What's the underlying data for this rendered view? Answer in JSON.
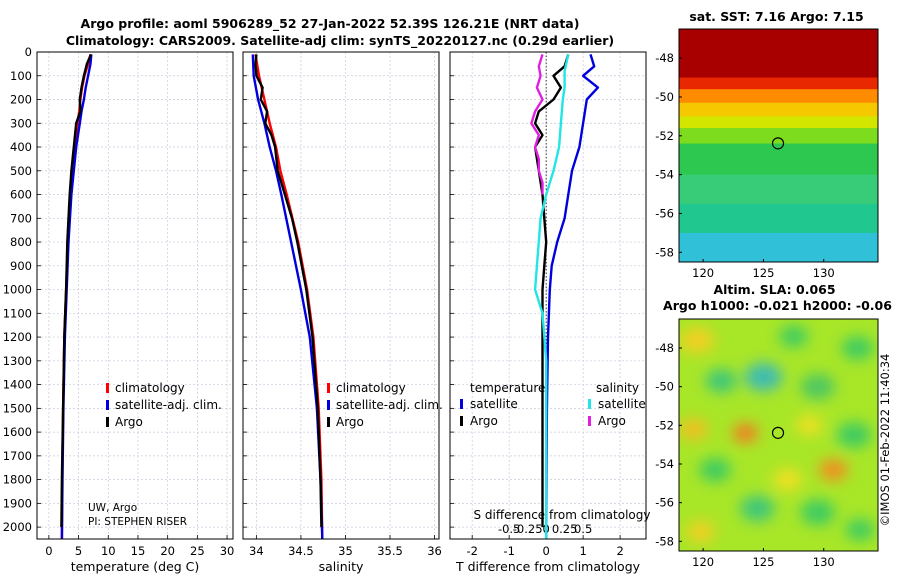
{
  "title": {
    "line1": "Argo profile: aoml 5906289_52 27-Jan-2022 52.39S 126.21E (NRT data)",
    "line2": "Climatology: CARS2009. Satellite-adj clim: synTS_20220127.nc (0.29d earlier)"
  },
  "credit": {
    "line1": "UW, Argo",
    "line2": "PI: STEPHEN RISER"
  },
  "stamp": "©IMOS 01-Feb-2022 11:40:34",
  "colors": {
    "climatology": "#ff0000",
    "satellite": "#0000dd",
    "argo": "#000000",
    "sat_sal": "#22e5e5",
    "argo_sal": "#e020e0",
    "grid": "#c8c8dc"
  },
  "chart_data": [
    {
      "type": "line",
      "id": "temperature",
      "xlabel": "temperature (deg C)",
      "ylabel": "",
      "xlim": [
        -2,
        31
      ],
      "ylim": [
        2050,
        0
      ],
      "xticks": [
        0,
        5,
        10,
        15,
        20,
        25,
        30
      ],
      "xtick_labels": [
        "0",
        "5",
        "10",
        "15",
        "20",
        "25",
        "30"
      ],
      "yticks": [
        0,
        100,
        200,
        300,
        400,
        500,
        600,
        700,
        800,
        900,
        1000,
        1100,
        1200,
        1300,
        1400,
        1500,
        1600,
        1700,
        1800,
        1900,
        2000
      ],
      "ytick_labels": [
        "0",
        "100",
        "200",
        "300",
        "400",
        "500",
        "600",
        "700",
        "800",
        "900",
        "1000",
        "1100",
        "1200",
        "1300",
        "1400",
        "1500",
        "1600",
        "1700",
        "1800",
        "1900",
        "2000"
      ],
      "legend": [
        "climatology",
        "satellite-adj. clim.",
        "Argo"
      ],
      "series": [
        {
          "name": "climatology",
          "color": "#ff0000",
          "depth": [
            10,
            50,
            100,
            150,
            200,
            250,
            300,
            400,
            500,
            600,
            800,
            1000,
            1200,
            1500,
            1800,
            2050
          ],
          "values": [
            7.0,
            6.6,
            6.0,
            5.6,
            5.3,
            5.1,
            4.8,
            4.3,
            3.9,
            3.6,
            3.2,
            2.9,
            2.6,
            2.4,
            2.25,
            2.2
          ]
        },
        {
          "name": "satellite-adj. clim.",
          "color": "#0000dd",
          "depth": [
            10,
            50,
            100,
            150,
            200,
            250,
            300,
            400,
            500,
            600,
            800,
            1000,
            1200,
            1500,
            1800,
            2050
          ],
          "values": [
            7.15,
            7.0,
            6.6,
            6.2,
            5.9,
            5.5,
            5.2,
            4.6,
            4.2,
            3.8,
            3.3,
            3.0,
            2.7,
            2.45,
            2.3,
            2.2
          ]
        },
        {
          "name": "Argo",
          "color": "#000000",
          "depth": [
            10,
            50,
            100,
            150,
            200,
            250,
            300,
            350,
            400,
            500,
            600,
            700,
            800,
            1000,
            1200,
            1500,
            1800,
            2000
          ],
          "values": [
            7.1,
            6.4,
            5.9,
            5.5,
            5.2,
            5.3,
            4.6,
            4.4,
            4.2,
            3.8,
            3.5,
            3.3,
            3.1,
            2.9,
            2.6,
            2.4,
            2.2,
            2.1
          ]
        }
      ]
    },
    {
      "type": "line",
      "id": "salinity",
      "xlabel": "salinity",
      "ylabel": "",
      "xlim": [
        33.85,
        36.05
      ],
      "ylim": [
        2050,
        0
      ],
      "xticks": [
        34,
        34.5,
        35,
        35.5,
        36
      ],
      "xtick_labels": [
        "34",
        "34.5",
        "35",
        "35.5",
        "36"
      ],
      "legend": [
        "climatology",
        "satellite-adj. clim.",
        "Argo"
      ],
      "series": [
        {
          "name": "climatology",
          "color": "#ff0000",
          "depth": [
            10,
            100,
            200,
            300,
            400,
            500,
            600,
            800,
            1000,
            1200,
            1500,
            1800,
            2050
          ],
          "values": [
            33.99,
            34.03,
            34.09,
            34.15,
            34.22,
            34.27,
            34.34,
            34.47,
            34.57,
            34.64,
            34.7,
            34.73,
            34.74
          ]
        },
        {
          "name": "satellite-adj. clim.",
          "color": "#0000dd",
          "depth": [
            10,
            100,
            200,
            300,
            400,
            500,
            600,
            800,
            1000,
            1200,
            1500,
            1800,
            2050
          ],
          "values": [
            33.96,
            33.97,
            34.02,
            34.09,
            34.15,
            34.22,
            34.28,
            34.39,
            34.5,
            34.6,
            34.68,
            34.72,
            34.74
          ]
        },
        {
          "name": "Argo",
          "color": "#000000",
          "depth": [
            10,
            50,
            100,
            150,
            200,
            250,
            300,
            350,
            400,
            500,
            600,
            700,
            800,
            1000,
            1200,
            1500,
            1800,
            2000
          ],
          "values": [
            34.0,
            33.99,
            34.0,
            34.07,
            34.05,
            34.12,
            34.1,
            34.17,
            34.21,
            34.24,
            34.32,
            34.4,
            34.46,
            34.56,
            34.63,
            34.69,
            34.72,
            34.73
          ]
        }
      ]
    },
    {
      "type": "line",
      "id": "difference",
      "xlabel": "T difference from climatology",
      "xlabel_top": "S difference from climatology",
      "xlim": [
        -2.6,
        2.7
      ],
      "ylim": [
        2050,
        0
      ],
      "xticks": [
        -2,
        -1,
        0,
        1,
        2
      ],
      "xtick_labels": [
        "-2",
        "-1",
        "0",
        "1",
        "2"
      ],
      "xticks_top": [
        -1,
        -0.5,
        0,
        0.5,
        1
      ],
      "xtick_labels_top": [
        "-0.5",
        "-0.25",
        "0",
        "0.25",
        "0.5"
      ],
      "legend_left_title": "temperature",
      "legend_right_title": "salinity",
      "legend": [
        "satellite",
        "Argo",
        "satellite",
        "Argo"
      ],
      "series": [
        {
          "name": "T satellite",
          "color": "#0000dd",
          "depth": [
            10,
            60,
            100,
            150,
            200,
            300,
            400,
            500,
            600,
            700,
            800,
            900,
            1000,
            1200,
            1500,
            1800,
            2050
          ],
          "values": [
            1.2,
            1.3,
            1.0,
            1.4,
            1.1,
            1.0,
            0.9,
            0.7,
            0.6,
            0.5,
            0.3,
            0.15,
            0.1,
            0.05,
            0.02,
            0.01,
            0.0
          ]
        },
        {
          "name": "T Argo",
          "color": "#000000",
          "depth": [
            10,
            60,
            100,
            150,
            200,
            250,
            300,
            350,
            400,
            500,
            600,
            700,
            800,
            900,
            1000,
            1200,
            1500,
            1800,
            2000
          ],
          "values": [
            0.6,
            0.5,
            0.2,
            0.4,
            0.2,
            -0.2,
            -0.3,
            -0.1,
            -0.3,
            -0.2,
            -0.1,
            -0.05,
            0.0,
            -0.05,
            -0.1,
            -0.1,
            -0.1,
            -0.1,
            -0.1
          ]
        },
        {
          "name": "S satellite",
          "color": "#22e5e5",
          "depth": [
            10,
            80,
            150,
            200,
            300,
            400,
            500,
            600,
            700,
            800,
            900,
            1000,
            1100,
            1300,
            1600,
            2050
          ],
          "values": [
            0.6,
            0.5,
            0.5,
            0.45,
            0.4,
            0.35,
            0.2,
            0.0,
            -0.15,
            -0.2,
            -0.25,
            -0.3,
            -0.1,
            0.0,
            0.0,
            0.0
          ]
        },
        {
          "name": "S Argo",
          "color": "#e020e0",
          "depth": [
            10,
            60,
            100,
            150,
            200,
            250,
            300,
            350,
            400,
            450,
            500,
            550,
            600
          ],
          "values": [
            -0.1,
            -0.2,
            -0.15,
            -0.25,
            -0.1,
            -0.3,
            -0.4,
            -0.2,
            -0.3,
            -0.2,
            -0.2,
            -0.1,
            -0.1
          ]
        }
      ]
    },
    {
      "type": "heatmap",
      "id": "sst_map",
      "title": "sat. SST: 7.16 Argo: 7.15",
      "xlim": [
        118,
        134.5
      ],
      "ylim": [
        -58.5,
        -46.5
      ],
      "xticks": [
        120,
        125,
        130
      ],
      "xtick_labels": [
        "120",
        "125",
        "130"
      ],
      "yticks": [
        -48,
        -50,
        -52,
        -54,
        -56,
        -58
      ],
      "ytick_labels": [
        "-48",
        "-50",
        "-52",
        "-54",
        "-56",
        "-58"
      ],
      "marker": {
        "lon": 126.21,
        "lat": -52.39
      },
      "bands": [
        {
          "color": "#a80000",
          "lat_top": -46.5,
          "lat_bottom": -49.0
        },
        {
          "color": "#e82800",
          "lat_top": -49.0,
          "lat_bottom": -49.6
        },
        {
          "color": "#ff8c00",
          "lat_top": -49.6,
          "lat_bottom": -50.3
        },
        {
          "color": "#f5c800",
          "lat_top": -50.3,
          "lat_bottom": -51.0
        },
        {
          "color": "#d2e600",
          "lat_top": -51.0,
          "lat_bottom": -51.6
        },
        {
          "color": "#7edc1e",
          "lat_top": -51.6,
          "lat_bottom": -52.4
        },
        {
          "color": "#2cc850",
          "lat_top": -52.4,
          "lat_bottom": -54.0
        },
        {
          "color": "#38cc78",
          "lat_top": -54.0,
          "lat_bottom": -55.5
        },
        {
          "color": "#20c890",
          "lat_top": -55.5,
          "lat_bottom": -57.0
        },
        {
          "color": "#30c0d8",
          "lat_top": -57.0,
          "lat_bottom": -58.5
        }
      ]
    },
    {
      "type": "heatmap",
      "id": "sla_map",
      "title": "Altim. SLA: 0.065",
      "subtitle": "Argo h1000: -0.021 h2000: -0.06",
      "xlim": [
        118,
        134.5
      ],
      "ylim": [
        -58.5,
        -46.5
      ],
      "xticks": [
        120,
        125,
        130
      ],
      "xtick_labels": [
        "120",
        "125",
        "130"
      ],
      "yticks": [
        -48,
        -50,
        -52,
        -54,
        -56,
        -58
      ],
      "ytick_labels": [
        "-48",
        "-50",
        "-52",
        "-54",
        "-56",
        "-58"
      ],
      "marker": {
        "lon": 126.21,
        "lat": -52.39
      },
      "base_color": "#a8e628",
      "blobs": [
        {
          "lon": 119.5,
          "lat": -47.6,
          "r": 1.2,
          "color": "#f0d020"
        },
        {
          "lon": 127.5,
          "lat": -47.4,
          "r": 1.0,
          "color": "#40cc60"
        },
        {
          "lon": 132.8,
          "lat": -48.0,
          "r": 1.1,
          "color": "#40cc60"
        },
        {
          "lon": 121.5,
          "lat": -49.7,
          "r": 1.1,
          "color": "#40c878"
        },
        {
          "lon": 125.0,
          "lat": -49.5,
          "r": 1.3,
          "color": "#40bcb0"
        },
        {
          "lon": 129.5,
          "lat": -50.0,
          "r": 1.2,
          "color": "#50c860"
        },
        {
          "lon": 119.2,
          "lat": -52.2,
          "r": 1.0,
          "color": "#f0c020"
        },
        {
          "lon": 123.5,
          "lat": -52.4,
          "r": 0.9,
          "color": "#f08020"
        },
        {
          "lon": 128.8,
          "lat": -52.0,
          "r": 0.9,
          "color": "#f0e020"
        },
        {
          "lon": 132.5,
          "lat": -52.5,
          "r": 1.2,
          "color": "#40cc60"
        },
        {
          "lon": 121.0,
          "lat": -54.3,
          "r": 1.1,
          "color": "#40cc60"
        },
        {
          "lon": 127.0,
          "lat": -54.8,
          "r": 1.0,
          "color": "#f0e020"
        },
        {
          "lon": 130.8,
          "lat": -54.3,
          "r": 1.0,
          "color": "#f09020"
        },
        {
          "lon": 124.5,
          "lat": -56.3,
          "r": 1.2,
          "color": "#40c878"
        },
        {
          "lon": 129.5,
          "lat": -56.5,
          "r": 1.2,
          "color": "#40cc60"
        },
        {
          "lon": 119.8,
          "lat": -57.5,
          "r": 1.0,
          "color": "#f0d020"
        },
        {
          "lon": 133.0,
          "lat": -57.4,
          "r": 1.0,
          "color": "#40cc60"
        }
      ]
    }
  ]
}
